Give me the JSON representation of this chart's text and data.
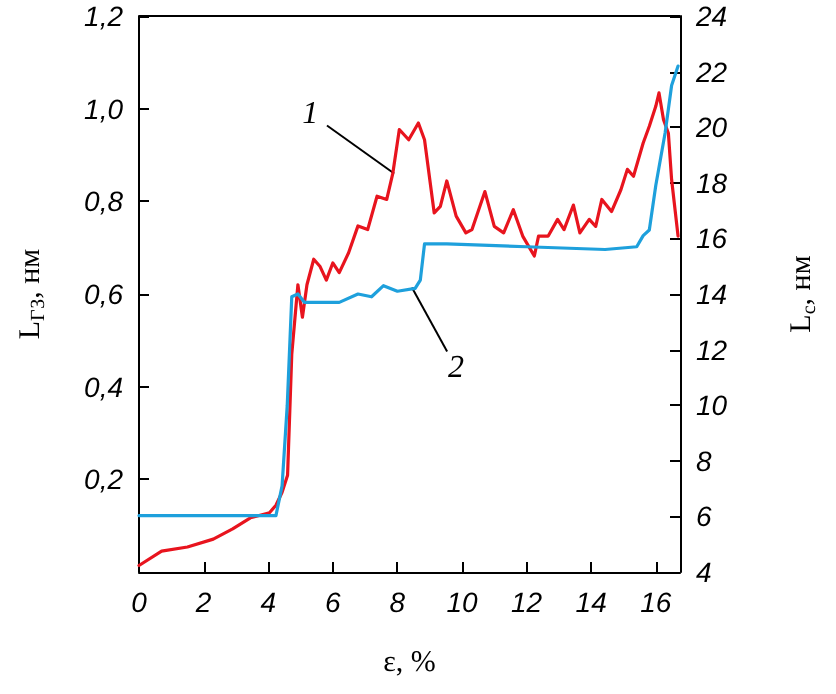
{
  "chart_data": {
    "type": "line",
    "xlabel": "ε, %",
    "ylabel": "L$_{ГЗ}$, нм",
    "y2label": "L$_{c}$, нм",
    "xlim": [
      0,
      16.75
    ],
    "xticks": [
      0,
      2,
      4,
      6,
      8,
      10,
      12,
      14,
      16
    ],
    "ylim": [
      0,
      1.2
    ],
    "yticks": [
      {
        "value": 0,
        "label": null
      },
      {
        "value": 0.2,
        "label": "0,2"
      },
      {
        "value": 0.4,
        "label": "0,4"
      },
      {
        "value": 0.6,
        "label": "0,6"
      },
      {
        "value": 0.8,
        "label": "0,8"
      },
      {
        "value": 1.0,
        "label": "1,0"
      },
      {
        "value": 1.2,
        "label": "1,2"
      }
    ],
    "y2lim": [
      4,
      24
    ],
    "y2ticks": [
      4,
      6,
      8,
      10,
      12,
      14,
      16,
      18,
      20,
      22,
      24
    ],
    "marker": "none",
    "annotations": [
      {
        "text": "1",
        "x": 7.9,
        "y": 0.86
      },
      {
        "text": "2",
        "x": 8.45,
        "y": 0.614
      }
    ],
    "series": [
      {
        "color": "#e8141e",
        "x": [
          0,
          0.7,
          1.5,
          2.3,
          2.9,
          3.45,
          4.04,
          4.24,
          4.43,
          4.6,
          4.73,
          4.92,
          5.06,
          5.2,
          5.41,
          5.6,
          5.8,
          6.0,
          6.2,
          6.49,
          6.78,
          7.08,
          7.37,
          7.67,
          7.86,
          8.06,
          8.35,
          8.65,
          8.84,
          9.14,
          9.33,
          9.53,
          9.82,
          10.12,
          10.31,
          10.71,
          11.0,
          11.29,
          11.59,
          11.88,
          12.24,
          12.37,
          12.67,
          12.96,
          13.16,
          13.45,
          13.65,
          13.94,
          14.14,
          14.33,
          14.63,
          14.92,
          15.12,
          15.31,
          15.61,
          15.8,
          16.0,
          16.1,
          16.24,
          16.39,
          16.49,
          16.69
        ],
        "values": [
          0.014,
          0.045,
          0.054,
          0.071,
          0.093,
          0.117,
          0.128,
          0.144,
          0.172,
          0.209,
          0.47,
          0.62,
          0.55,
          0.62,
          0.675,
          0.66,
          0.63,
          0.667,
          0.646,
          0.689,
          0.747,
          0.739,
          0.811,
          0.804,
          0.861,
          0.955,
          0.933,
          0.969,
          0.933,
          0.775,
          0.789,
          0.844,
          0.768,
          0.732,
          0.739,
          0.821,
          0.746,
          0.732,
          0.782,
          0.725,
          0.682,
          0.725,
          0.725,
          0.761,
          0.739,
          0.792,
          0.732,
          0.761,
          0.746,
          0.804,
          0.778,
          0.825,
          0.869,
          0.854,
          0.926,
          0.962,
          1.005,
          1.034,
          0.976,
          0.947,
          0.847,
          0.725
        ]
      },
      {
        "color": "#1ea0dc",
        "axis": "y2",
        "x": [
          0,
          2,
          4.24,
          4.43,
          4.59,
          4.73,
          4.92,
          5.12,
          6.2,
          6.78,
          7.2,
          7.57,
          8.0,
          8.55,
          8.71,
          8.84,
          9.53,
          12.0,
          14.43,
          15.41,
          15.61,
          15.8,
          16.0,
          16.29,
          16.49,
          16.69
        ],
        "values": [
          6.03,
          6.03,
          6.03,
          7.1,
          10.0,
          13.9,
          14.0,
          13.7,
          13.7,
          14.0,
          13.9,
          14.3,
          14.1,
          14.2,
          14.5,
          15.8,
          15.8,
          15.7,
          15.6,
          15.7,
          16.1,
          16.3,
          17.9,
          19.8,
          21.5,
          22.2
        ]
      }
    ]
  }
}
